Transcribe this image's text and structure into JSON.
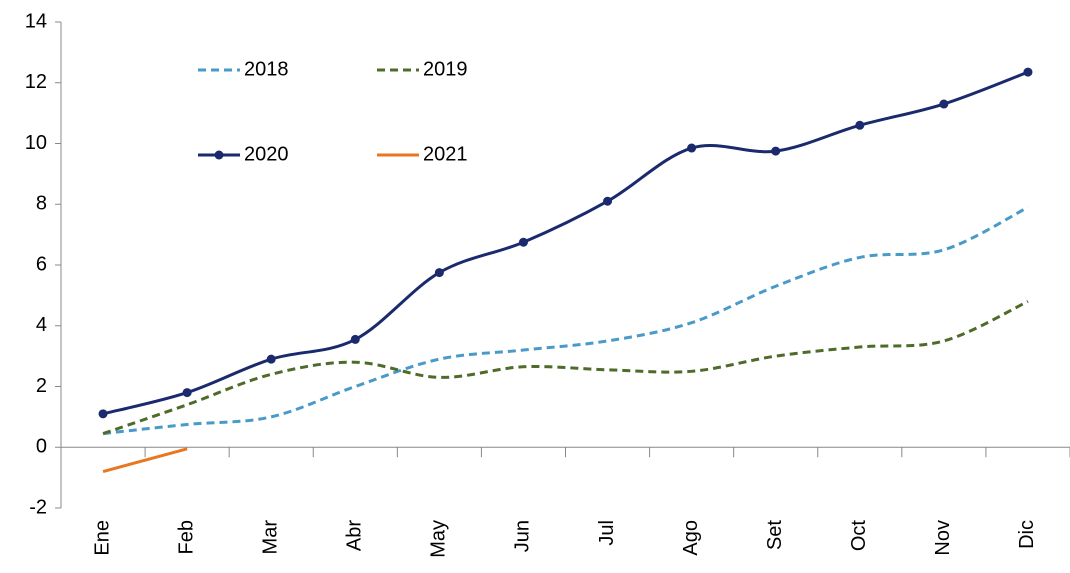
{
  "chart_data": {
    "type": "line",
    "categories": [
      "Ene",
      "Feb",
      "Mar",
      "Abr",
      "May",
      "Jun",
      "Jul",
      "Ago",
      "Set",
      "Oct",
      "Nov",
      "Dic"
    ],
    "series": [
      {
        "name": "2018",
        "color": "#4a9ac9",
        "dashed": true,
        "markers": false,
        "values": [
          0.45,
          0.75,
          1.0,
          2.0,
          2.9,
          3.2,
          3.5,
          4.1,
          5.3,
          6.25,
          6.5,
          7.9
        ]
      },
      {
        "name": "2019",
        "color": "#4e6b2a",
        "dashed": true,
        "markers": false,
        "values": [
          0.45,
          1.4,
          2.4,
          2.8,
          2.3,
          2.65,
          2.55,
          2.5,
          3.0,
          3.3,
          3.5,
          4.8
        ]
      },
      {
        "name": "2020",
        "color": "#1a2a6c",
        "dashed": false,
        "markers": true,
        "values": [
          1.1,
          1.8,
          2.9,
          3.55,
          5.75,
          6.75,
          8.1,
          9.85,
          9.75,
          10.6,
          11.3,
          12.35
        ]
      },
      {
        "name": "2021",
        "color": "#e87722",
        "dashed": false,
        "markers": false,
        "values": [
          -0.8,
          -0.05,
          null,
          null,
          null,
          null,
          null,
          null,
          null,
          null,
          null,
          null
        ]
      }
    ],
    "ylim": [
      -2,
      14
    ],
    "yticks": [
      -2,
      0,
      2,
      4,
      6,
      8,
      10,
      12,
      14
    ],
    "smooth": true,
    "grid": false
  }
}
